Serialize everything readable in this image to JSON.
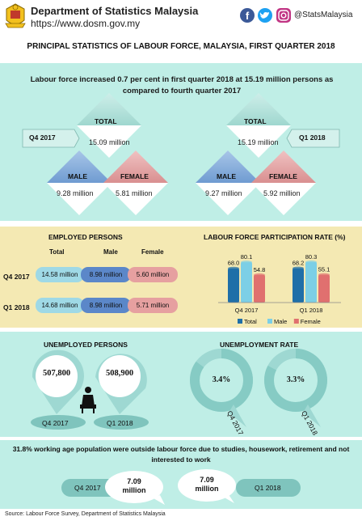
{
  "header": {
    "department": "Department of Statistics Malaysia",
    "url": "https://www.dosm.gov.my",
    "social_handle": "@StatsMalaysia",
    "colors": {
      "facebook": "#3b5998",
      "twitter": "#1da1f2",
      "instagram": "#c13584"
    }
  },
  "title": "PRINCIPAL STATISTICS OF LABOUR FORCE, MALAYSIA, FIRST QUARTER 2018",
  "labour_force": {
    "headline": "Labour force increased 0.7 per cent in first quarter 2018 at 15.19 million persons as compared to fourth quarter 2017",
    "q4_2017": {
      "period": "Q4 2017",
      "total_label": "TOTAL",
      "total": "15.09 million",
      "male_label": "MALE",
      "male": "9.28 million",
      "female_label": "FEMALE",
      "female": "5.81 million"
    },
    "q1_2018": {
      "period": "Q1 2018",
      "total_label": "TOTAL",
      "total": "15.19 million",
      "male_label": "MALE",
      "male": "9.27 million",
      "female_label": "FEMALE",
      "female": "5.92 million"
    }
  },
  "employed": {
    "title": "EMPLOYED PERSONS",
    "columns": [
      "Total",
      "Male",
      "Female"
    ],
    "rows": [
      {
        "period": "Q4 2017",
        "total": "14.58 million",
        "male": "8.98 million",
        "female": "5.60 million"
      },
      {
        "period": "Q1 2018",
        "total": "14.68 million",
        "male": "8.98 million",
        "female": "5.71 million"
      }
    ]
  },
  "chart_data": {
    "type": "bar",
    "title": "LABOUR FORCE PARTICIPATION RATE (%)",
    "categories": [
      "Q4 2017",
      "Q1 2018"
    ],
    "series": [
      {
        "name": "Total",
        "values": [
          68.0,
          68.2
        ],
        "labels": [
          "68.0",
          "68.2"
        ],
        "color": "#1f6fa8"
      },
      {
        "name": "Male",
        "values": [
          80.1,
          80.3
        ],
        "labels": [
          "80.1",
          "80.3"
        ],
        "color": "#7ccfe6"
      },
      {
        "name": "Female",
        "values": [
          54.8,
          55.1
        ],
        "labels": [
          "54.8",
          "55.1"
        ],
        "color": "#e0706f"
      }
    ],
    "ylim": [
      0,
      90
    ],
    "legend": "bottom"
  },
  "unemployed": {
    "title": "UNEMPLOYED PERSONS",
    "q4_value": "507,800",
    "q1_value": "508,900",
    "q4_label": "Q4 2017",
    "q1_label": "Q1 2018"
  },
  "unemployment_rate": {
    "title": "UNEMPLOYMENT RATE",
    "q4_value": "3.4%",
    "q1_value": "3.3%",
    "q4_label": "Q4 2017",
    "q1_label": "Q1 2018",
    "q4_level": 3.4,
    "q1_level": 3.3
  },
  "outside": {
    "headline": "31.8% working age population were outside labour force due to studies, housework, retirement and not interested to work",
    "q4_label": "Q4 2017",
    "q4_value_line1": "7.09",
    "q4_value_line2": "million",
    "q1_label": "Q1 2018",
    "q1_value_line1": "7.09",
    "q1_value_line2": "million"
  },
  "footer": "Source: Labour Force Survey, Department of Statistics Malaysia"
}
